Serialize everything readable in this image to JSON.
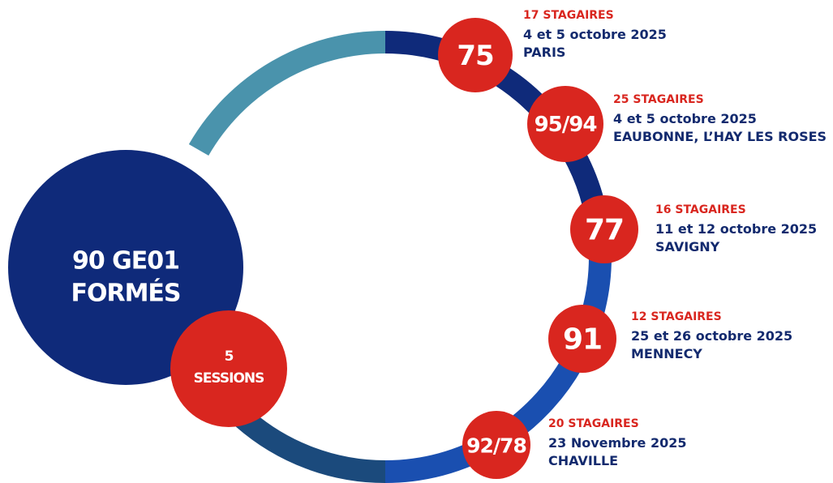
{
  "hub": {
    "title_line1": "90 GE01",
    "title_line2": "FORMÉS",
    "sessions_line1": "5",
    "sessions_line2": "SESSIONS"
  },
  "sessions": [
    {
      "code": "75",
      "trainees": "17 STAGAIRES",
      "date": "4 et 5 octobre 2025",
      "place": "PARIS"
    },
    {
      "code": "95/94",
      "trainees": "25 STAGAIRES",
      "date": "4 et 5 octobre 2025",
      "place": "EAUBONNE, L’HAY LES ROSES"
    },
    {
      "code": "77",
      "trainees": "16 STAGAIRES",
      "date": "11 et 12 octobre 2025",
      "place": "SAVIGNY"
    },
    {
      "code": "91",
      "trainees": "12 STAGAIRES",
      "date": "25 et 26 octobre 2025",
      "place": "MENNECY"
    },
    {
      "code": "92/78",
      "trainees": "20 STAGAIRES",
      "date": "23 Novembre 2025",
      "place": "CHAVILLE"
    }
  ]
}
